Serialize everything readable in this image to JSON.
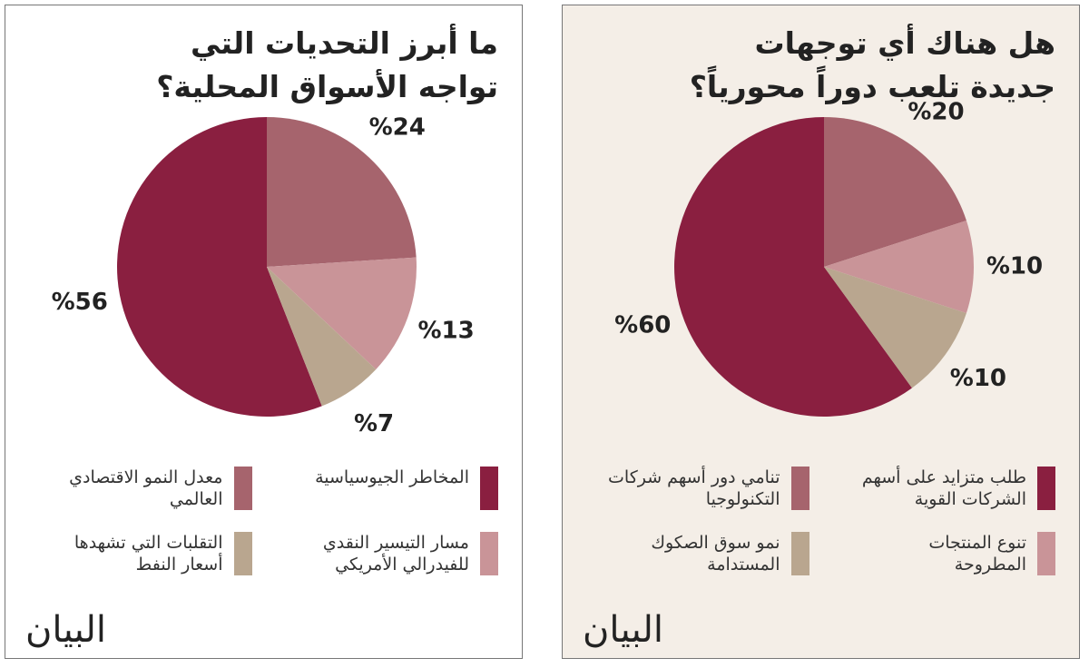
{
  "chart_data": [
    {
      "type": "pie",
      "title": "ما أبرز التحديات التي تواجه الأسواق المحلية؟",
      "categories": [
        "المخاطر الجيوسياسية",
        "معدل النمو الاقتصادي العالمي",
        "مسار التيسير النقدي للفيدرالي الأمريكي",
        "التقلبات التي تشهدها أسعار النفط"
      ],
      "values": [
        56,
        24,
        13,
        7
      ],
      "value_labels": [
        "%56",
        "%24",
        "%13",
        "%7"
      ],
      "colors": [
        "#8a1f40",
        "#a6646d",
        "#c99498",
        "#b9a68f"
      ],
      "background": "#ffffff"
    },
    {
      "type": "pie",
      "title": "هل هناك أي توجهات جديدة تلعب دوراً محورياً؟",
      "categories": [
        "طلب متزايد على أسهم الشركات القوية",
        "تنامي دور أسهم شركات التكنولوجيا",
        "تنوع المنتجات المطروحة",
        "نمو سوق الصكوك المستدامة"
      ],
      "values": [
        60,
        20,
        10,
        10
      ],
      "value_labels": [
        "%60",
        "%20",
        "%10",
        "%10"
      ],
      "colors": [
        "#8a1f40",
        "#a6646d",
        "#c99498",
        "#b9a68f"
      ],
      "background": "#f4eee7"
    }
  ],
  "brand": "البيان"
}
